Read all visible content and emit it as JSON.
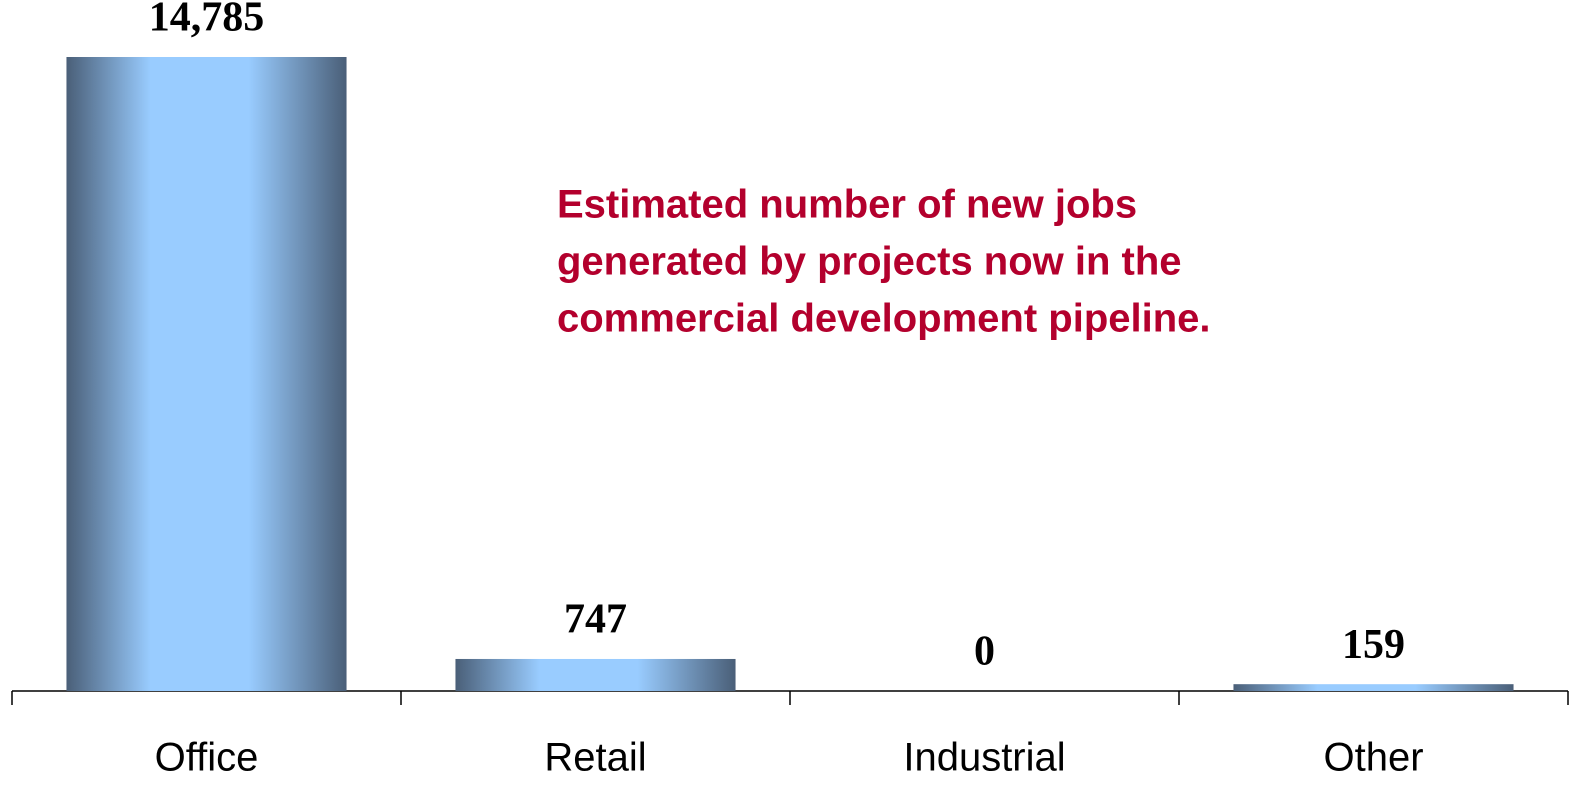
{
  "chart_data": {
    "type": "bar",
    "categories": [
      "Office",
      "Retail",
      "Industrial",
      "Other"
    ],
    "values": [
      14785,
      747,
      0,
      159
    ],
    "value_labels": [
      "14,785",
      "747",
      "0",
      "159"
    ],
    "color": "#99ccff",
    "edge_color": "#4a5f78",
    "annotation": [
      "Estimated number of new jobs",
      "generated by projects now in the",
      "commercial development pipeline."
    ]
  }
}
